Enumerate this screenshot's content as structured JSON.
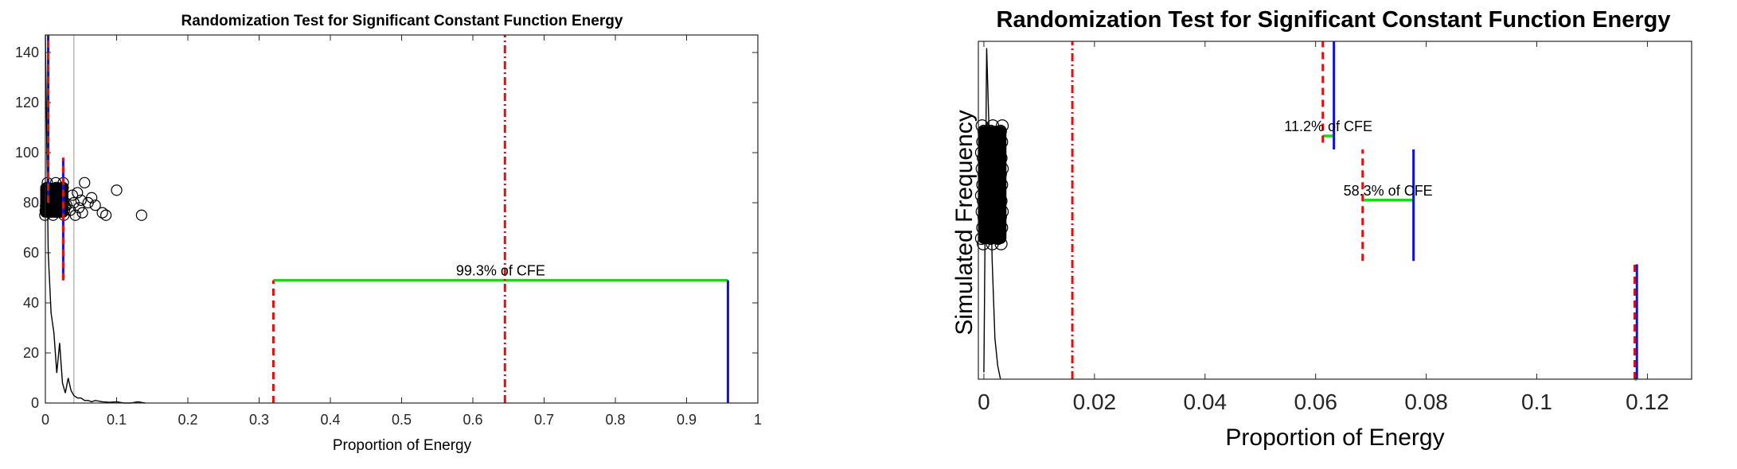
{
  "chart_data": [
    {
      "type": "line",
      "title": "Randomization Test for Significant Constant Function Energy",
      "xlabel": "Proportion of Energy",
      "ylabel": "",
      "xlim": [
        0,
        1
      ],
      "ylim": [
        0,
        147
      ],
      "xticks": [
        0,
        0.1,
        0.2,
        0.3,
        0.4,
        0.5,
        0.6,
        0.7,
        0.8,
        0.9,
        1
      ],
      "xtick_labels": [
        "0",
        "0.1",
        "0.2",
        "0.3",
        "0.4",
        "0.5",
        "0.6",
        "0.7",
        "0.8",
        "0.9",
        "1"
      ],
      "yticks": [
        0,
        20,
        40,
        60,
        80,
        100,
        120,
        140
      ],
      "ytick_labels": [
        "0",
        "20",
        "40",
        "60",
        "80",
        "100",
        "120",
        "140"
      ],
      "grid": false,
      "colors": {
        "blue": "#1010e0",
        "red": "#e01010",
        "green": "#10e010",
        "gray": "#bbbbbb"
      },
      "histogram": {
        "x": [
          0,
          0.004,
          0.008,
          0.012,
          0.016,
          0.02,
          0.024,
          0.028,
          0.032,
          0.036,
          0.04,
          0.045,
          0.05,
          0.055,
          0.06,
          0.065,
          0.07,
          0.08,
          0.09,
          0.1,
          0.11,
          0.12,
          0.13,
          0.14
        ],
        "y": [
          147,
          60,
          36,
          28,
          12,
          24,
          8,
          4,
          10,
          5,
          3,
          2,
          2,
          1,
          1,
          0.5,
          1,
          0.5,
          0.3,
          0.5,
          0,
          0,
          0.5,
          0
        ]
      },
      "reference_line_x": 0.04,
      "vertical_lines": [
        {
          "x": 0.004,
          "y0": 80,
          "y1": 147,
          "style": "solid",
          "color": "blue"
        },
        {
          "x": 0.004,
          "y0": 80,
          "y1": 147,
          "style": "dashed",
          "color": "red"
        },
        {
          "x": 0.025,
          "y0": 49,
          "y1": 98,
          "style": "solid",
          "color": "blue"
        },
        {
          "x": 0.025,
          "y0": 49,
          "y1": 98,
          "style": "dashed",
          "color": "red"
        },
        {
          "x": 0.32,
          "y0": 0,
          "y1": 49,
          "style": "dashed",
          "color": "red"
        },
        {
          "x": 0.958,
          "y0": 0,
          "y1": 49,
          "style": "solid",
          "color": "blue"
        },
        {
          "x": 0.645,
          "y0": 0,
          "y1": 147,
          "style": "dashdot",
          "color": "red"
        }
      ],
      "ranges": [
        {
          "x0": 0.32,
          "x1": 0.958,
          "y": 49,
          "label": "99.3% of CFE"
        }
      ],
      "scatter": {
        "cluster_x": [
          0,
          0.025
        ],
        "cluster_y": [
          74,
          88
        ],
        "outliers": [
          [
            0.025,
            86
          ],
          [
            0.03,
            79
          ],
          [
            0.035,
            77
          ],
          [
            0.038,
            83
          ],
          [
            0.04,
            80
          ],
          [
            0.042,
            75
          ],
          [
            0.045,
            84
          ],
          [
            0.047,
            78
          ],
          [
            0.05,
            81
          ],
          [
            0.052,
            76
          ],
          [
            0.055,
            88
          ],
          [
            0.06,
            80
          ],
          [
            0.065,
            82
          ],
          [
            0.07,
            79
          ],
          [
            0.08,
            76
          ],
          [
            0.085,
            75
          ],
          [
            0.1,
            85
          ],
          [
            0.135,
            75
          ]
        ]
      }
    },
    {
      "type": "line",
      "title": "Randomization Test for Significant Constant Function Energy",
      "xlabel": "Proportion of Energy",
      "ylabel": "Simulated Frequency",
      "xlim": [
        -0.001,
        0.128
      ],
      "ylim": [
        0,
        1
      ],
      "xticks": [
        0,
        0.02,
        0.04,
        0.06,
        0.08,
        0.1,
        0.12
      ],
      "xtick_labels": [
        "0",
        "0.02",
        "0.04",
        "0.06",
        "0.08",
        "0.1",
        "0.12"
      ],
      "grid": false,
      "histogram": {
        "x": [
          0,
          0.0005,
          0.001,
          0.0015,
          0.002,
          0.0025,
          0.003
        ],
        "y": [
          0.02,
          0.98,
          0.7,
          0.35,
          0.12,
          0.04,
          0
        ]
      },
      "vertical_lines": [
        {
          "x": 0.016,
          "y0": 0,
          "y1": 1,
          "style": "dashdot",
          "color": "red"
        },
        {
          "x": 0.0613,
          "y0": 0.7,
          "y1": 1,
          "style": "dashed",
          "color": "red"
        },
        {
          "x": 0.0633,
          "y0": 0.68,
          "y1": 1,
          "style": "solid",
          "color": "blue"
        },
        {
          "x": 0.0685,
          "y0": 0.35,
          "y1": 0.68,
          "style": "dashed",
          "color": "red"
        },
        {
          "x": 0.0777,
          "y0": 0.35,
          "y1": 0.68,
          "style": "solid",
          "color": "blue"
        },
        {
          "x": 0.1177,
          "y0": 0,
          "y1": 0.34,
          "style": "dashed",
          "color": "red"
        },
        {
          "x": 0.1181,
          "y0": 0,
          "y1": 0.34,
          "style": "solid",
          "color": "blue"
        }
      ],
      "ranges": [
        {
          "x0": 0.0613,
          "x1": 0.0633,
          "y": 0.72,
          "label": "11.2% of CFE"
        },
        {
          "x0": 0.0685,
          "x1": 0.0777,
          "y": 0.53,
          "label": "58.3% of CFE"
        },
        {
          "x0": 0.1177,
          "x1": 0.1181,
          "y": 0.0,
          "label": ""
        }
      ],
      "scatter": {
        "cluster_x": [
          0,
          0.003
        ],
        "cluster_y": [
          0.4,
          0.75
        ]
      }
    }
  ]
}
